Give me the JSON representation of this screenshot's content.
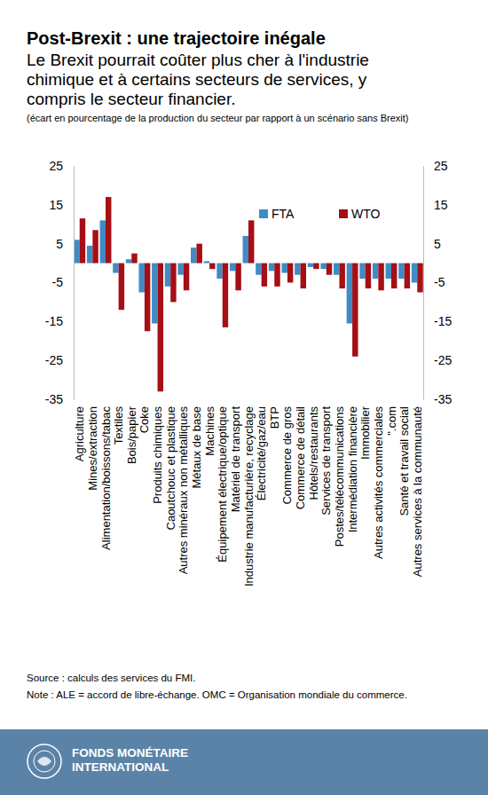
{
  "chart_data": {
    "type": "bar",
    "title": "Post-Brexit : une trajectoire inégale",
    "subtitle": [
      "Le Brexit pourrait coûter plus cher à l'industrie",
      "chimique et à certains secteurs de services, y",
      "compris le secteur financier."
    ],
    "y_label": "(écart en pourcentage de la production du secteur par rapport à un scénario sans Brexit)",
    "source": "Source : calculs des services du FMI.",
    "note": "Note : ALE = accord de libre-échange. OMC = Organisation mondiale du commerce.",
    "footer": [
      "FONDS MONÉTAIRE",
      "INTERNATIONAL"
    ],
    "categories": [
      "Agriculture",
      "Mines/extraction",
      "Alimentation/boissons/tabac",
      "Textiles",
      "Bois/papier",
      "Coke",
      "Produits chimiques",
      "Caoutchouc et plastique",
      "Autres minéraux non métalliques",
      "Métaux de base",
      "Machines",
      "Équipement électrique/optique",
      "Matériel de transport",
      "Industrie manufacturière, recyclage",
      "Électricité/gaz/eau",
      "BTP",
      "Commerce de gros",
      "Commerce de détail",
      "Hôtels/restaurants",
      "Services de transport",
      "Postes/télécommunications",
      "Intermédiation financière",
      "Immobilier",
      "Autres activités commerciales",
      "\".com",
      "Santé et travail social",
      "Autres services à la communauté"
    ],
    "series": [
      {
        "name": "FTA",
        "color": "#3f8cc4",
        "values": [
          6,
          4.5,
          11,
          -2.5,
          1,
          -7.5,
          -15.5,
          -6,
          -3,
          4,
          0.5,
          -4,
          -2,
          7,
          -3,
          -2,
          -2.5,
          -3,
          -1,
          -1.5,
          -3,
          -15.5,
          -4,
          -4,
          -4,
          -4,
          -5
        ]
      },
      {
        "name": "WTO",
        "color": "#a50f15",
        "values": [
          11.5,
          8.5,
          17,
          -12,
          2.5,
          -17.5,
          -33,
          -10,
          -7,
          5,
          -1.5,
          -16.5,
          -7,
          11,
          -6,
          -6,
          -5,
          -6.5,
          -1.5,
          -3,
          -6.5,
          -24,
          -6.5,
          -7,
          -6.5,
          -6.5,
          -7.5
        ]
      }
    ],
    "ylim": [
      -35,
      25
    ],
    "yticks": [
      -35,
      -25,
      -15,
      -5,
      5,
      15,
      25
    ],
    "y2lim": [
      -35,
      25
    ],
    "y2ticks": [
      -35,
      -25,
      -15,
      -5,
      5,
      15,
      25
    ],
    "grid": false,
    "legend": "top-right"
  }
}
